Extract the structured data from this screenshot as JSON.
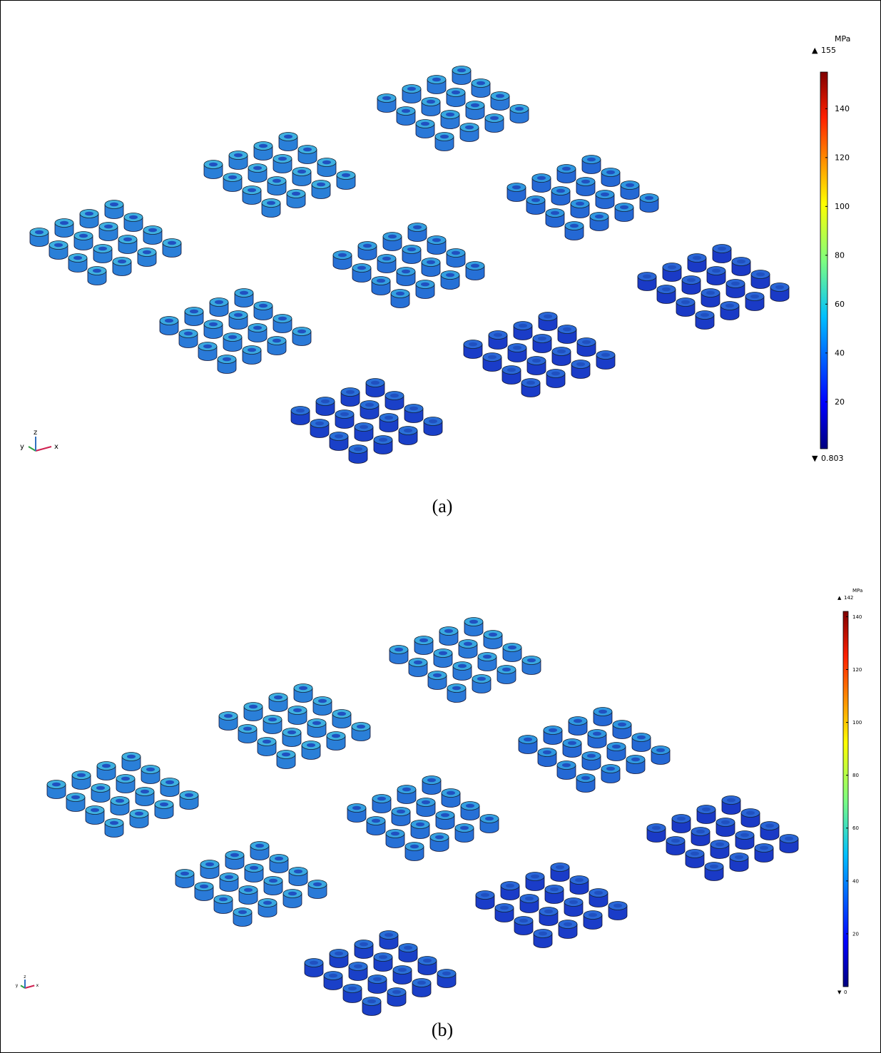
{
  "panels": [
    {
      "colorbar": {
        "unit": "MPa",
        "max": 155,
        "min": 0.803,
        "ticks": [
          20,
          40,
          60,
          80,
          100,
          120,
          140
        ]
      },
      "axes": {
        "x": "x",
        "y": "y",
        "z": "z"
      },
      "caption": "(a)"
    },
    {
      "colorbar": {
        "unit": "MPa",
        "max": 142,
        "min": 0,
        "ticks": [
          20,
          40,
          60,
          80,
          100,
          120,
          140
        ]
      },
      "axes": {
        "x": "x",
        "y": "y",
        "z": "z"
      },
      "caption": "(b)"
    }
  ]
}
